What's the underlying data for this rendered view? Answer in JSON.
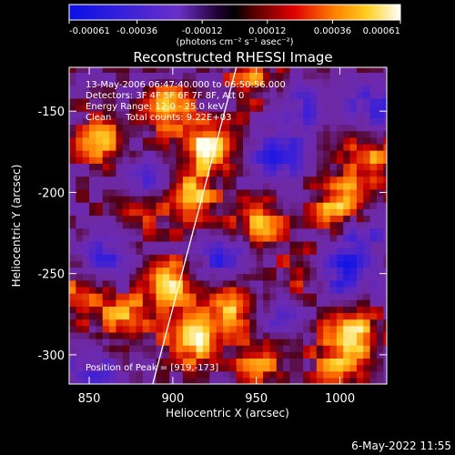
{
  "chart_data": {
    "type": "heatmap",
    "title": "Reconstructed RHESSI Image",
    "xlabel": "Heliocentric X (arcsec)",
    "ylabel": "Heliocentric Y (arcsec)",
    "xlim": [
      838,
      1028
    ],
    "ylim": [
      -318,
      -123
    ],
    "x_ticks": [
      850,
      900,
      950,
      1000
    ],
    "y_ticks": [
      -150,
      -200,
      -250,
      -300
    ],
    "colorbar": {
      "ticks": [
        "-0.00061",
        "-0.00036",
        "-0.00012",
        "0.00012",
        "0.00036",
        "0.00061"
      ],
      "tick_values": [
        -0.00061,
        -0.00036,
        -0.00012,
        0.00012,
        0.00036,
        0.00061
      ],
      "range": [
        -0.00061,
        0.00061
      ],
      "units_label": "(photons cm⁻² s⁻¹ asec⁻²)"
    },
    "annotations": {
      "time_range": "13-May-2006 06:47:40.000 to 06:50:56.000",
      "detectors": "Detectors: 3F 4F 5F 6F 7F 8F, Att 0",
      "energy": "Energy Range: 12.0 - 25.0 keV",
      "clean": "Clean     Total counts: 9.22E+03",
      "peak": "Position of Peak = [919,-173]"
    },
    "limb_line": {
      "x": [
        888,
        938
      ],
      "y": [
        -318,
        -123
      ]
    },
    "bright_regions": [
      {
        "x": 945,
        "y": -130,
        "v": 0.00035
      },
      {
        "x": 895,
        "y": -150,
        "v": 0.00045
      },
      {
        "x": 855,
        "y": -170,
        "v": 0.0004
      },
      {
        "x": 920,
        "y": -173,
        "v": 0.00061
      },
      {
        "x": 908,
        "y": -205,
        "v": 0.0005
      },
      {
        "x": 875,
        "y": -215,
        "v": 0.00035
      },
      {
        "x": 1000,
        "y": -210,
        "v": 0.0006
      },
      {
        "x": 950,
        "y": -220,
        "v": 0.00045
      },
      {
        "x": 1015,
        "y": -180,
        "v": 0.0004
      },
      {
        "x": 980,
        "y": -250,
        "v": 0.0003
      },
      {
        "x": 895,
        "y": -258,
        "v": 0.0005
      },
      {
        "x": 845,
        "y": -265,
        "v": 0.00035
      },
      {
        "x": 935,
        "y": -270,
        "v": 0.0005
      },
      {
        "x": 870,
        "y": -280,
        "v": 0.0004
      },
      {
        "x": 910,
        "y": -292,
        "v": 0.00058
      },
      {
        "x": 1005,
        "y": -290,
        "v": 0.00052
      },
      {
        "x": 950,
        "y": -305,
        "v": 0.00035
      },
      {
        "x": 995,
        "y": -310,
        "v": 0.0003
      }
    ],
    "dark_regions": [
      {
        "x": 1000,
        "y": -250,
        "v": -0.00055
      },
      {
        "x": 960,
        "y": -180,
        "v": -0.00045
      },
      {
        "x": 860,
        "y": -240,
        "v": -0.0004
      },
      {
        "x": 930,
        "y": -245,
        "v": -0.0004
      },
      {
        "x": 1020,
        "y": -150,
        "v": -0.0004
      },
      {
        "x": 975,
        "y": -150,
        "v": -0.00035
      },
      {
        "x": 880,
        "y": -195,
        "v": -0.0003
      },
      {
        "x": 850,
        "y": -310,
        "v": -0.0003
      },
      {
        "x": 960,
        "y": -280,
        "v": -0.0003
      },
      {
        "x": 1010,
        "y": -225,
        "v": -0.00035
      }
    ]
  },
  "footer": {
    "plot_date": "6-May-2022 11:55"
  }
}
